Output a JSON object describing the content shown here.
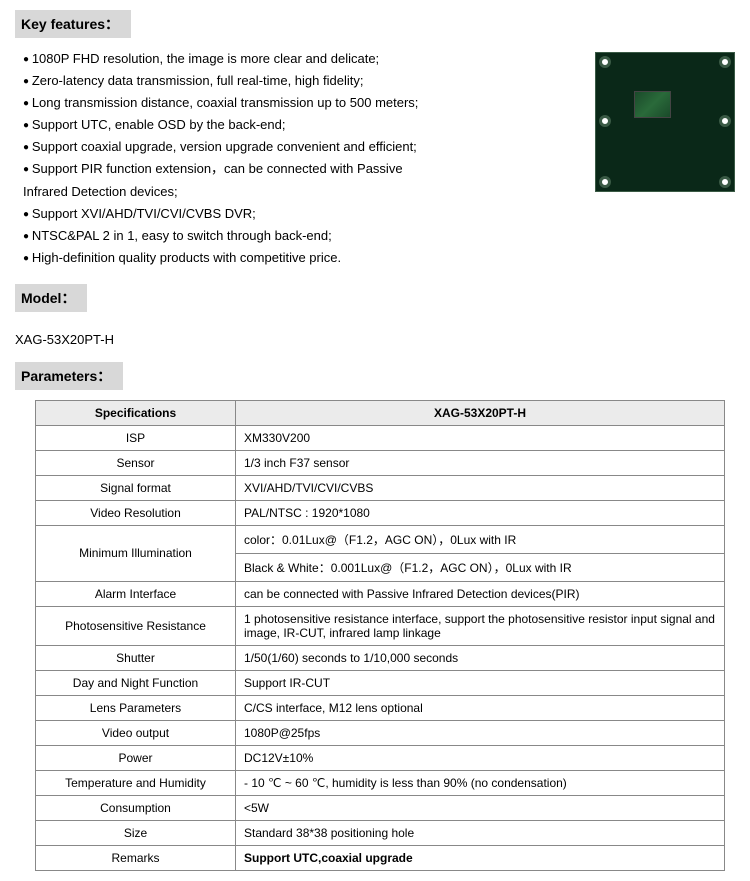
{
  "sections": {
    "key_features": "Key features：",
    "model": "Model：",
    "parameters": "Parameters："
  },
  "features": [
    "1080P FHD resolution, the image is more clear and delicate;",
    "Zero-latency data transmission, full real-time, high fidelity;",
    "Long transmission distance, coaxial transmission up to 500 meters;",
    "Support UTC, enable OSD by the back-end;",
    "Support coaxial upgrade, version upgrade convenient and efficient;",
    "Support PIR function extension，can be connected with Passive"
  ],
  "features_cont": "Infrared Detection devices;",
  "features2": [
    "Support XVI/AHD/TVI/CVI/CVBS DVR;",
    "NTSC&PAL 2 in 1, easy to switch through back-end;",
    "High-definition quality products with competitive price."
  ],
  "model_name": "XAG-53X20PT-H",
  "table": {
    "header": {
      "spec": "Specifications",
      "product": "XAG-53X20PT-H"
    },
    "rows": [
      {
        "label": "ISP",
        "value": "XM330V200"
      },
      {
        "label": "Sensor",
        "value": "1/3 inch F37 sensor"
      },
      {
        "label": "Signal format",
        "value": "XVI/AHD/TVI/CVI/CVBS"
      },
      {
        "label": "Video Resolution",
        "value": "PAL/NTSC : 1920*1080"
      }
    ],
    "minimum_illumination": {
      "label": "Minimum Illumination",
      "color": "color：0.01Lux@（F1.2，AGC ON），0Lux with IR",
      "bw": "Black & White：0.001Lux@（F1.2，AGC ON），0Lux with IR"
    },
    "rows2": [
      {
        "label": "Alarm Interface",
        "value": "can be connected with Passive Infrared Detection devices(PIR)"
      },
      {
        "label": "Photosensitive Resistance",
        "value": "1 photosensitive resistance interface, support the photosensitive resistor input signal and image, IR-CUT, infrared lamp linkage"
      },
      {
        "label": "Shutter",
        "value": "1/50(1/60) seconds to 1/10,000 seconds"
      },
      {
        "label": "Day and Night Function",
        "value": "Support IR-CUT"
      },
      {
        "label": "Lens Parameters",
        "value": "C/CS interface, M12 lens optional"
      },
      {
        "label": "Video output",
        "value": "1080P@25fps"
      },
      {
        "label": "Power",
        "value": "DC12V±10%"
      },
      {
        "label": "Temperature and Humidity",
        "value": "- 10 ℃ ~ 60 ℃, humidity is less than 90% (no condensation)"
      },
      {
        "label": "Consumption",
        "value": "<5W"
      },
      {
        "label": "Size",
        "value": "Standard 38*38 positioning hole"
      },
      {
        "label": "Remarks",
        "value": "Support UTC,coaxial upgrade",
        "bold": true
      }
    ]
  },
  "colors": {
    "header_bg": "#d8d8d8",
    "table_header_bg": "#ebebeb",
    "border": "#888888",
    "pcb": "#0a2818"
  }
}
